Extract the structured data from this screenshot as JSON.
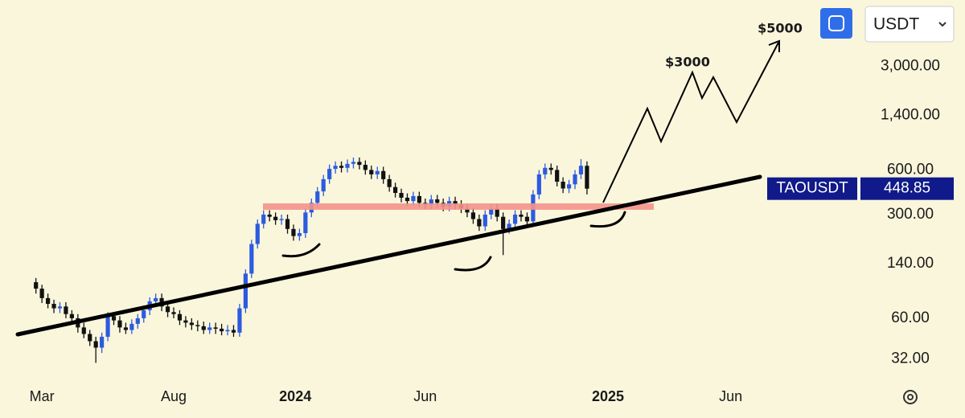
{
  "toolbar": {
    "currency": "USDT"
  },
  "chart_data": {
    "type": "candlestick",
    "symbol": "TAOUSDT",
    "log_scale": true,
    "up_color": "#2c5be0",
    "down_color": "#111111",
    "annotations": [
      "$3000",
      "$5000"
    ],
    "xlim": [
      -6,
      139
    ],
    "xticks": [
      {
        "value": 1,
        "label": "Mar"
      },
      {
        "value": 23,
        "label": "Aug"
      },
      {
        "value": 43.3,
        "label": "2024"
      },
      {
        "value": 65,
        "label": "Jun"
      },
      {
        "value": 95.5,
        "label": "2025"
      },
      {
        "value": 116,
        "label": "Jun"
      }
    ],
    "ylim": [
      21,
      8400
    ],
    "yticks": [
      {
        "value": 3000,
        "label": "3,000.00"
      },
      {
        "value": 1400,
        "label": "1,400.00"
      },
      {
        "value": 600,
        "label": "600.00"
      },
      {
        "value": 300,
        "label": "300.00"
      },
      {
        "value": 140,
        "label": "140.00"
      },
      {
        "value": 60,
        "label": "60.00"
      },
      {
        "value": 32,
        "label": "32.00"
      }
    ],
    "open": [
      105,
      95,
      82,
      75,
      70,
      72,
      64,
      60,
      52,
      47,
      42,
      38,
      45,
      62,
      58,
      52,
      50,
      55,
      60,
      68,
      78,
      82,
      72,
      66,
      64,
      58,
      56,
      54,
      53,
      50,
      52,
      51,
      49,
      50,
      48,
      70,
      120,
      190,
      260,
      300,
      290,
      275,
      280,
      240,
      215,
      225,
      310,
      360,
      430,
      520,
      610,
      640,
      620,
      660,
      680,
      650,
      600,
      560,
      590,
      520,
      460,
      420,
      390,
      370,
      400,
      360,
      350,
      380,
      360,
      340,
      370,
      350,
      330,
      310,
      280,
      250,
      300,
      330,
      290,
      240,
      260,
      300,
      290,
      270,
      410,
      560,
      620,
      600,
      500,
      450,
      480,
      560,
      640
    ],
    "high": [
      112,
      101,
      88,
      80,
      77,
      77,
      68,
      64,
      56,
      50,
      45,
      48,
      66,
      66,
      62,
      56,
      59,
      64,
      73,
      83,
      88,
      88,
      77,
      71,
      68,
      62,
      60,
      58,
      57,
      56,
      56,
      55,
      54,
      54,
      75,
      128,
      203,
      278,
      321,
      321,
      310,
      300,
      300,
      257,
      241,
      332,
      385,
      460,
      556,
      653,
      685,
      685,
      706,
      728,
      728,
      696,
      642,
      631,
      631,
      556,
      492,
      449,
      417,
      428,
      428,
      385,
      407,
      407,
      385,
      396,
      396,
      375,
      353,
      332,
      300,
      321,
      353,
      353,
      310,
      278,
      321,
      321,
      310,
      439,
      599,
      663,
      663,
      642,
      535,
      514,
      599,
      710,
      685
    ],
    "low": [
      88,
      76,
      70,
      65,
      65,
      60,
      56,
      48,
      44,
      39,
      30,
      35,
      42,
      54,
      48,
      47,
      47,
      51,
      56,
      63,
      73,
      67,
      61,
      60,
      54,
      52,
      50,
      49,
      47,
      47,
      47,
      46,
      46,
      45,
      45,
      65,
      112,
      177,
      242,
      270,
      256,
      256,
      223,
      200,
      200,
      209,
      288,
      335,
      400,
      484,
      567,
      577,
      577,
      614,
      605,
      558,
      521,
      521,
      484,
      428,
      391,
      363,
      344,
      344,
      335,
      326,
      326,
      335,
      316,
      316,
      326,
      307,
      288,
      260,
      233,
      233,
      279,
      270,
      160,
      223,
      242,
      270,
      251,
      251,
      381,
      521,
      558,
      465,
      419,
      419,
      446,
      521,
      410
    ],
    "close": [
      95,
      82,
      75,
      70,
      72,
      64,
      60,
      52,
      47,
      42,
      38,
      45,
      62,
      58,
      52,
      50,
      55,
      60,
      68,
      78,
      82,
      72,
      66,
      64,
      58,
      56,
      54,
      53,
      50,
      52,
      51,
      49,
      50,
      48,
      70,
      120,
      190,
      260,
      300,
      290,
      275,
      280,
      240,
      215,
      225,
      310,
      360,
      430,
      520,
      610,
      640,
      620,
      660,
      680,
      650,
      600,
      560,
      590,
      520,
      460,
      420,
      390,
      370,
      400,
      360,
      350,
      380,
      360,
      340,
      370,
      350,
      330,
      310,
      280,
      250,
      300,
      330,
      290,
      240,
      260,
      300,
      290,
      270,
      410,
      560,
      620,
      600,
      500,
      450,
      480,
      560,
      640,
      448.85
    ]
  }
}
